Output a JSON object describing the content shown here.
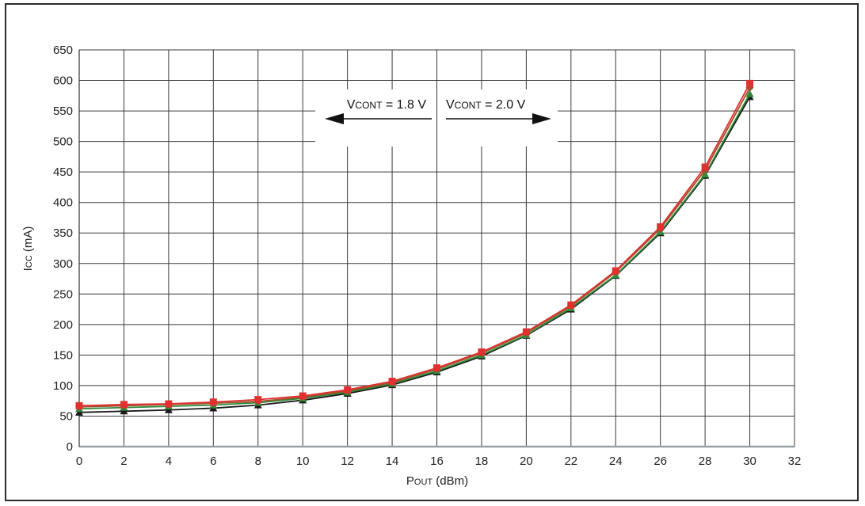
{
  "chart_data": {
    "type": "line",
    "title": "",
    "xlabel": {
      "main": "P",
      "sub": "OUT",
      "unit": " (dBm)"
    },
    "ylabel": {
      "main": "I",
      "sub": "CC",
      "unit": " (mA)"
    },
    "xlim": [
      0,
      32
    ],
    "ylim": [
      0,
      650
    ],
    "xticks": [
      0,
      2,
      4,
      6,
      8,
      10,
      12,
      14,
      16,
      18,
      20,
      22,
      24,
      26,
      28,
      30,
      32
    ],
    "yticks": [
      0,
      50,
      100,
      150,
      200,
      250,
      300,
      350,
      400,
      450,
      500,
      550,
      600,
      650
    ],
    "grid": true,
    "x": [
      0,
      2,
      4,
      6,
      8,
      10,
      12,
      14,
      16,
      18,
      20,
      22,
      24,
      26,
      28,
      30
    ],
    "series": [
      {
        "color": "#1a1a1a",
        "marker": "triangle",
        "values": [
          56,
          58,
          60,
          63,
          68,
          76,
          87,
          101,
          122,
          148,
          182,
          225,
          280,
          350,
          444,
          573
        ]
      },
      {
        "color": "#2e8b3a",
        "marker": "triangle",
        "values": [
          62,
          64,
          66,
          68,
          72,
          79,
          89,
          103,
          124,
          150,
          183,
          227,
          281,
          352,
          446,
          578
        ]
      },
      {
        "color": "#a0522d",
        "marker": "diamond",
        "values": [
          65,
          67,
          69,
          71,
          74,
          81,
          91,
          105,
          127,
          153,
          186,
          230,
          286,
          357,
          453,
          588
        ]
      },
      {
        "color": "#e03030",
        "marker": "square",
        "values": [
          67,
          69,
          70,
          73,
          77,
          83,
          93,
          107,
          129,
          155,
          188,
          232,
          288,
          360,
          458,
          595
        ]
      }
    ],
    "annotation": {
      "left": {
        "main": "V",
        "sub": "CONT",
        "rest": " = 1.8 V"
      },
      "right": {
        "main": "V",
        "sub": "CONT",
        "rest": " = 2.0 V"
      },
      "divider_x": 16
    }
  }
}
